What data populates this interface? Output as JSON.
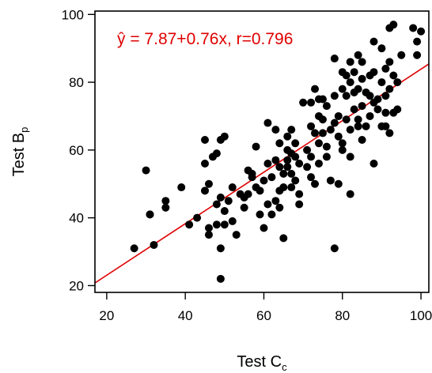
{
  "chart_data": {
    "type": "scatter",
    "title": "",
    "xlabel": {
      "main": "Test C",
      "subscript": "c"
    },
    "ylabel": {
      "main": "Test B",
      "subscript": "p"
    },
    "xlim": [
      17,
      102
    ],
    "ylim": [
      18,
      101
    ],
    "x_ticks": [
      20,
      40,
      60,
      80,
      100
    ],
    "y_ticks": [
      20,
      40,
      60,
      80,
      100
    ],
    "grid": false,
    "annotation": {
      "yhat": "ŷ",
      "rest": " = 7.87+0.76x, r=0.796"
    },
    "colors": {
      "points": "#000000",
      "fit_line": "#e00000",
      "annotation": "#e00000"
    },
    "regression": {
      "intercept": 7.87,
      "slope": 0.76,
      "r": 0.796
    },
    "points": [
      [
        27,
        31
      ],
      [
        30,
        54
      ],
      [
        31,
        41
      ],
      [
        31,
        41
      ],
      [
        32,
        32
      ],
      [
        35,
        45
      ],
      [
        35,
        43
      ],
      [
        39,
        49
      ],
      [
        41,
        38
      ],
      [
        43,
        40
      ],
      [
        45,
        48
      ],
      [
        45,
        63
      ],
      [
        45,
        56
      ],
      [
        46,
        50
      ],
      [
        46,
        37
      ],
      [
        46,
        35
      ],
      [
        47,
        58
      ],
      [
        48,
        59
      ],
      [
        48,
        44
      ],
      [
        48,
        38
      ],
      [
        49,
        22
      ],
      [
        49,
        31
      ],
      [
        49,
        46
      ],
      [
        49,
        63
      ],
      [
        50,
        64
      ],
      [
        50,
        42
      ],
      [
        50,
        38
      ],
      [
        51,
        45
      ],
      [
        52,
        39
      ],
      [
        52,
        49
      ],
      [
        53,
        35
      ],
      [
        54,
        47
      ],
      [
        55,
        46
      ],
      [
        55,
        43
      ],
      [
        56,
        54
      ],
      [
        56,
        47
      ],
      [
        57,
        53
      ],
      [
        57,
        52
      ],
      [
        58,
        61
      ],
      [
        58,
        49
      ],
      [
        59,
        48
      ],
      [
        59,
        41
      ],
      [
        60,
        51
      ],
      [
        60,
        37
      ],
      [
        61,
        68
      ],
      [
        61,
        56
      ],
      [
        61,
        44
      ],
      [
        62,
        52
      ],
      [
        62,
        41
      ],
      [
        63,
        66
      ],
      [
        63,
        57
      ],
      [
        63,
        45
      ],
      [
        64,
        62
      ],
      [
        64,
        55
      ],
      [
        64,
        48
      ],
      [
        64,
        43
      ],
      [
        65,
        53
      ],
      [
        65,
        34
      ],
      [
        65,
        49
      ],
      [
        66,
        64
      ],
      [
        66,
        60
      ],
      [
        66,
        57
      ],
      [
        66,
        55
      ],
      [
        67,
        66
      ],
      [
        67,
        59
      ],
      [
        67,
        53
      ],
      [
        67,
        49
      ],
      [
        68,
        62
      ],
      [
        68,
        58
      ],
      [
        68,
        51
      ],
      [
        69,
        56
      ],
      [
        69,
        47
      ],
      [
        69,
        44
      ],
      [
        70,
        74
      ],
      [
        71,
        60
      ],
      [
        71,
        55
      ],
      [
        72,
        74
      ],
      [
        72,
        67
      ],
      [
        72,
        58
      ],
      [
        72,
        52
      ],
      [
        73,
        78
      ],
      [
        73,
        65
      ],
      [
        73,
        50
      ],
      [
        74,
        75
      ],
      [
        74,
        70
      ],
      [
        74,
        62
      ],
      [
        74,
        56
      ],
      [
        75,
        75
      ],
      [
        75,
        69
      ],
      [
        75,
        65
      ],
      [
        76,
        73
      ],
      [
        76,
        61
      ],
      [
        76,
        58
      ],
      [
        77,
        66
      ],
      [
        77,
        51
      ],
      [
        78,
        87
      ],
      [
        78,
        76
      ],
      [
        78,
        68
      ],
      [
        78,
        31
      ],
      [
        79,
        70
      ],
      [
        79,
        64
      ],
      [
        79,
        50
      ],
      [
        80,
        83
      ],
      [
        80,
        78
      ],
      [
        80,
        62
      ],
      [
        80,
        60
      ],
      [
        81,
        82
      ],
      [
        81,
        76
      ],
      [
        81,
        69
      ],
      [
        82,
        86
      ],
      [
        82,
        80
      ],
      [
        82,
        66
      ],
      [
        82,
        58
      ],
      [
        82,
        47
      ],
      [
        83,
        83
      ],
      [
        83,
        77
      ],
      [
        83,
        72
      ],
      [
        84,
        88
      ],
      [
        84,
        78
      ],
      [
        84,
        69
      ],
      [
        84,
        67
      ],
      [
        85,
        86
      ],
      [
        85,
        81
      ],
      [
        85,
        73
      ],
      [
        85,
        63
      ],
      [
        86,
        77
      ],
      [
        86,
        67
      ],
      [
        87,
        82
      ],
      [
        87,
        76
      ],
      [
        87,
        70
      ],
      [
        88,
        92
      ],
      [
        88,
        83
      ],
      [
        88,
        74
      ],
      [
        88,
        56
      ],
      [
        89,
        75
      ],
      [
        89,
        72
      ],
      [
        90,
        90
      ],
      [
        90,
        80
      ],
      [
        90,
        67
      ],
      [
        91,
        84
      ],
      [
        91,
        76
      ],
      [
        91,
        71
      ],
      [
        91,
        67
      ],
      [
        92,
        96
      ],
      [
        92,
        86
      ],
      [
        92,
        78
      ],
      [
        92,
        65
      ],
      [
        93,
        97
      ],
      [
        93,
        82
      ],
      [
        93,
        71
      ],
      [
        94,
        80
      ],
      [
        94,
        72
      ],
      [
        95,
        88
      ],
      [
        98,
        96
      ],
      [
        99,
        88
      ],
      [
        99,
        92
      ],
      [
        100,
        95
      ]
    ]
  }
}
